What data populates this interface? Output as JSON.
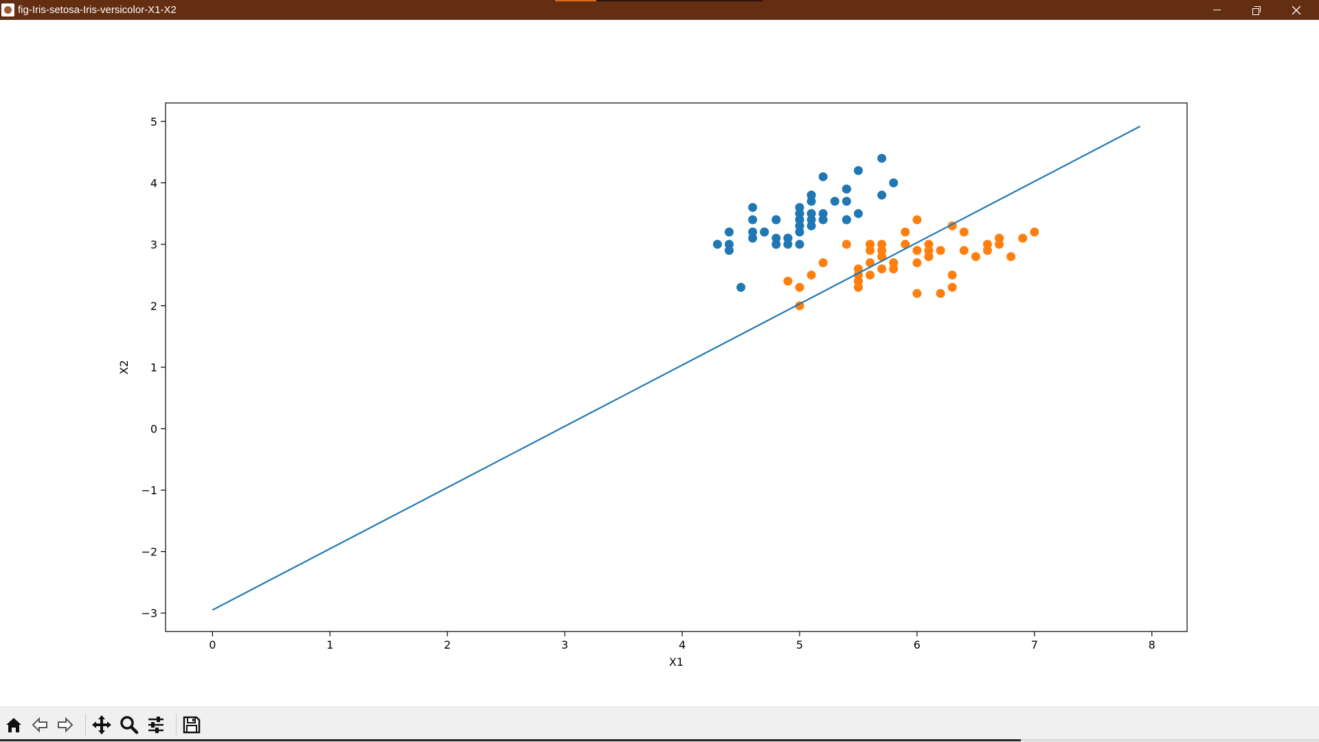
{
  "window": {
    "title": "fig-Iris-setosa-Iris-versicolor-X1-X2"
  },
  "toolbar": {
    "buttons": [
      {
        "icon": "home-icon",
        "name": "home-button"
      },
      {
        "icon": "back-arrow-icon",
        "name": "back-button"
      },
      {
        "icon": "forward-arrow-icon",
        "name": "forward-button"
      },
      {
        "icon": "pan-move-icon",
        "name": "pan-button"
      },
      {
        "icon": "zoom-magnifier-icon",
        "name": "zoom-button"
      },
      {
        "icon": "configure-subplots-icon",
        "name": "configure-subplots-button"
      },
      {
        "icon": "save-floppy-icon",
        "name": "save-button"
      }
    ]
  },
  "chart_data": {
    "type": "scatter",
    "xlabel": "X1",
    "ylabel": "X2",
    "xlim": [
      -0.4,
      8.3
    ],
    "ylim": [
      -3.3,
      5.3
    ],
    "xticks": [
      0,
      1,
      2,
      3,
      4,
      5,
      6,
      7,
      8
    ],
    "yticks": [
      -3,
      -2,
      -1,
      0,
      1,
      2,
      3,
      4,
      5
    ],
    "tick_labels_x": [
      "0",
      "1",
      "2",
      "3",
      "4",
      "5",
      "6",
      "7",
      "8"
    ],
    "tick_labels_y": [
      "−3",
      "−2",
      "−1",
      "0",
      "1",
      "2",
      "3",
      "4",
      "5"
    ],
    "grid": false,
    "series": [
      {
        "color": "#1f77b4",
        "kind": "scatter",
        "points": [
          [
            5.1,
            3.5
          ],
          [
            4.9,
            3.0
          ],
          [
            4.7,
            3.2
          ],
          [
            4.6,
            3.1
          ],
          [
            5.0,
            3.6
          ],
          [
            5.4,
            3.9
          ],
          [
            4.6,
            3.4
          ],
          [
            5.0,
            3.4
          ],
          [
            4.4,
            2.9
          ],
          [
            4.9,
            3.1
          ],
          [
            5.4,
            3.7
          ],
          [
            4.8,
            3.4
          ],
          [
            4.8,
            3.0
          ],
          [
            4.3,
            3.0
          ],
          [
            5.8,
            4.0
          ],
          [
            5.7,
            4.4
          ],
          [
            5.4,
            3.9
          ],
          [
            5.1,
            3.5
          ],
          [
            5.7,
            3.8
          ],
          [
            5.1,
            3.8
          ],
          [
            5.4,
            3.4
          ],
          [
            5.1,
            3.7
          ],
          [
            4.6,
            3.6
          ],
          [
            5.1,
            3.3
          ],
          [
            4.8,
            3.4
          ],
          [
            5.0,
            3.0
          ],
          [
            5.0,
            3.4
          ],
          [
            5.2,
            3.5
          ],
          [
            5.2,
            3.4
          ],
          [
            4.7,
            3.2
          ],
          [
            4.8,
            3.1
          ],
          [
            5.4,
            3.4
          ],
          [
            5.2,
            4.1
          ],
          [
            5.5,
            4.2
          ],
          [
            4.9,
            3.1
          ],
          [
            5.0,
            3.2
          ],
          [
            5.5,
            3.5
          ],
          [
            4.9,
            3.1
          ],
          [
            4.4,
            3.0
          ],
          [
            5.1,
            3.4
          ],
          [
            5.0,
            3.5
          ],
          [
            4.5,
            2.3
          ],
          [
            4.4,
            3.2
          ],
          [
            5.0,
            3.5
          ],
          [
            5.1,
            3.8
          ],
          [
            4.8,
            3.0
          ],
          [
            5.1,
            3.8
          ],
          [
            4.6,
            3.2
          ],
          [
            5.3,
            3.7
          ],
          [
            5.0,
            3.3
          ]
        ]
      },
      {
        "color": "#ff7f0e",
        "kind": "scatter",
        "points": [
          [
            7.0,
            3.2
          ],
          [
            6.4,
            3.2
          ],
          [
            6.9,
            3.1
          ],
          [
            5.5,
            2.3
          ],
          [
            6.5,
            2.8
          ],
          [
            5.7,
            2.8
          ],
          [
            6.3,
            3.3
          ],
          [
            4.9,
            2.4
          ],
          [
            6.6,
            2.9
          ],
          [
            5.2,
            2.7
          ],
          [
            5.0,
            2.0
          ],
          [
            5.9,
            3.0
          ],
          [
            6.0,
            2.2
          ],
          [
            6.1,
            2.9
          ],
          [
            5.6,
            2.9
          ],
          [
            6.7,
            3.1
          ],
          [
            5.6,
            3.0
          ],
          [
            5.8,
            2.7
          ],
          [
            6.2,
            2.2
          ],
          [
            5.6,
            2.5
          ],
          [
            5.9,
            3.2
          ],
          [
            6.1,
            2.8
          ],
          [
            6.3,
            2.5
          ],
          [
            6.1,
            2.8
          ],
          [
            6.4,
            2.9
          ],
          [
            6.6,
            3.0
          ],
          [
            6.8,
            2.8
          ],
          [
            6.7,
            3.0
          ],
          [
            6.0,
            2.9
          ],
          [
            5.7,
            2.6
          ],
          [
            5.5,
            2.4
          ],
          [
            5.5,
            2.4
          ],
          [
            5.8,
            2.7
          ],
          [
            6.0,
            2.7
          ],
          [
            5.4,
            3.0
          ],
          [
            6.0,
            3.4
          ],
          [
            6.7,
            3.1
          ],
          [
            6.3,
            2.3
          ],
          [
            5.6,
            3.0
          ],
          [
            5.5,
            2.5
          ],
          [
            5.5,
            2.6
          ],
          [
            6.1,
            3.0
          ],
          [
            5.8,
            2.6
          ],
          [
            5.0,
            2.3
          ],
          [
            5.6,
            2.7
          ],
          [
            5.7,
            3.0
          ],
          [
            5.7,
            2.9
          ],
          [
            6.2,
            2.9
          ],
          [
            5.1,
            2.5
          ],
          [
            5.7,
            2.8
          ]
        ]
      },
      {
        "color": "#1f77b4",
        "kind": "line",
        "points": [
          [
            0,
            -2.95
          ],
          [
            7.9,
            4.92
          ]
        ]
      }
    ]
  }
}
